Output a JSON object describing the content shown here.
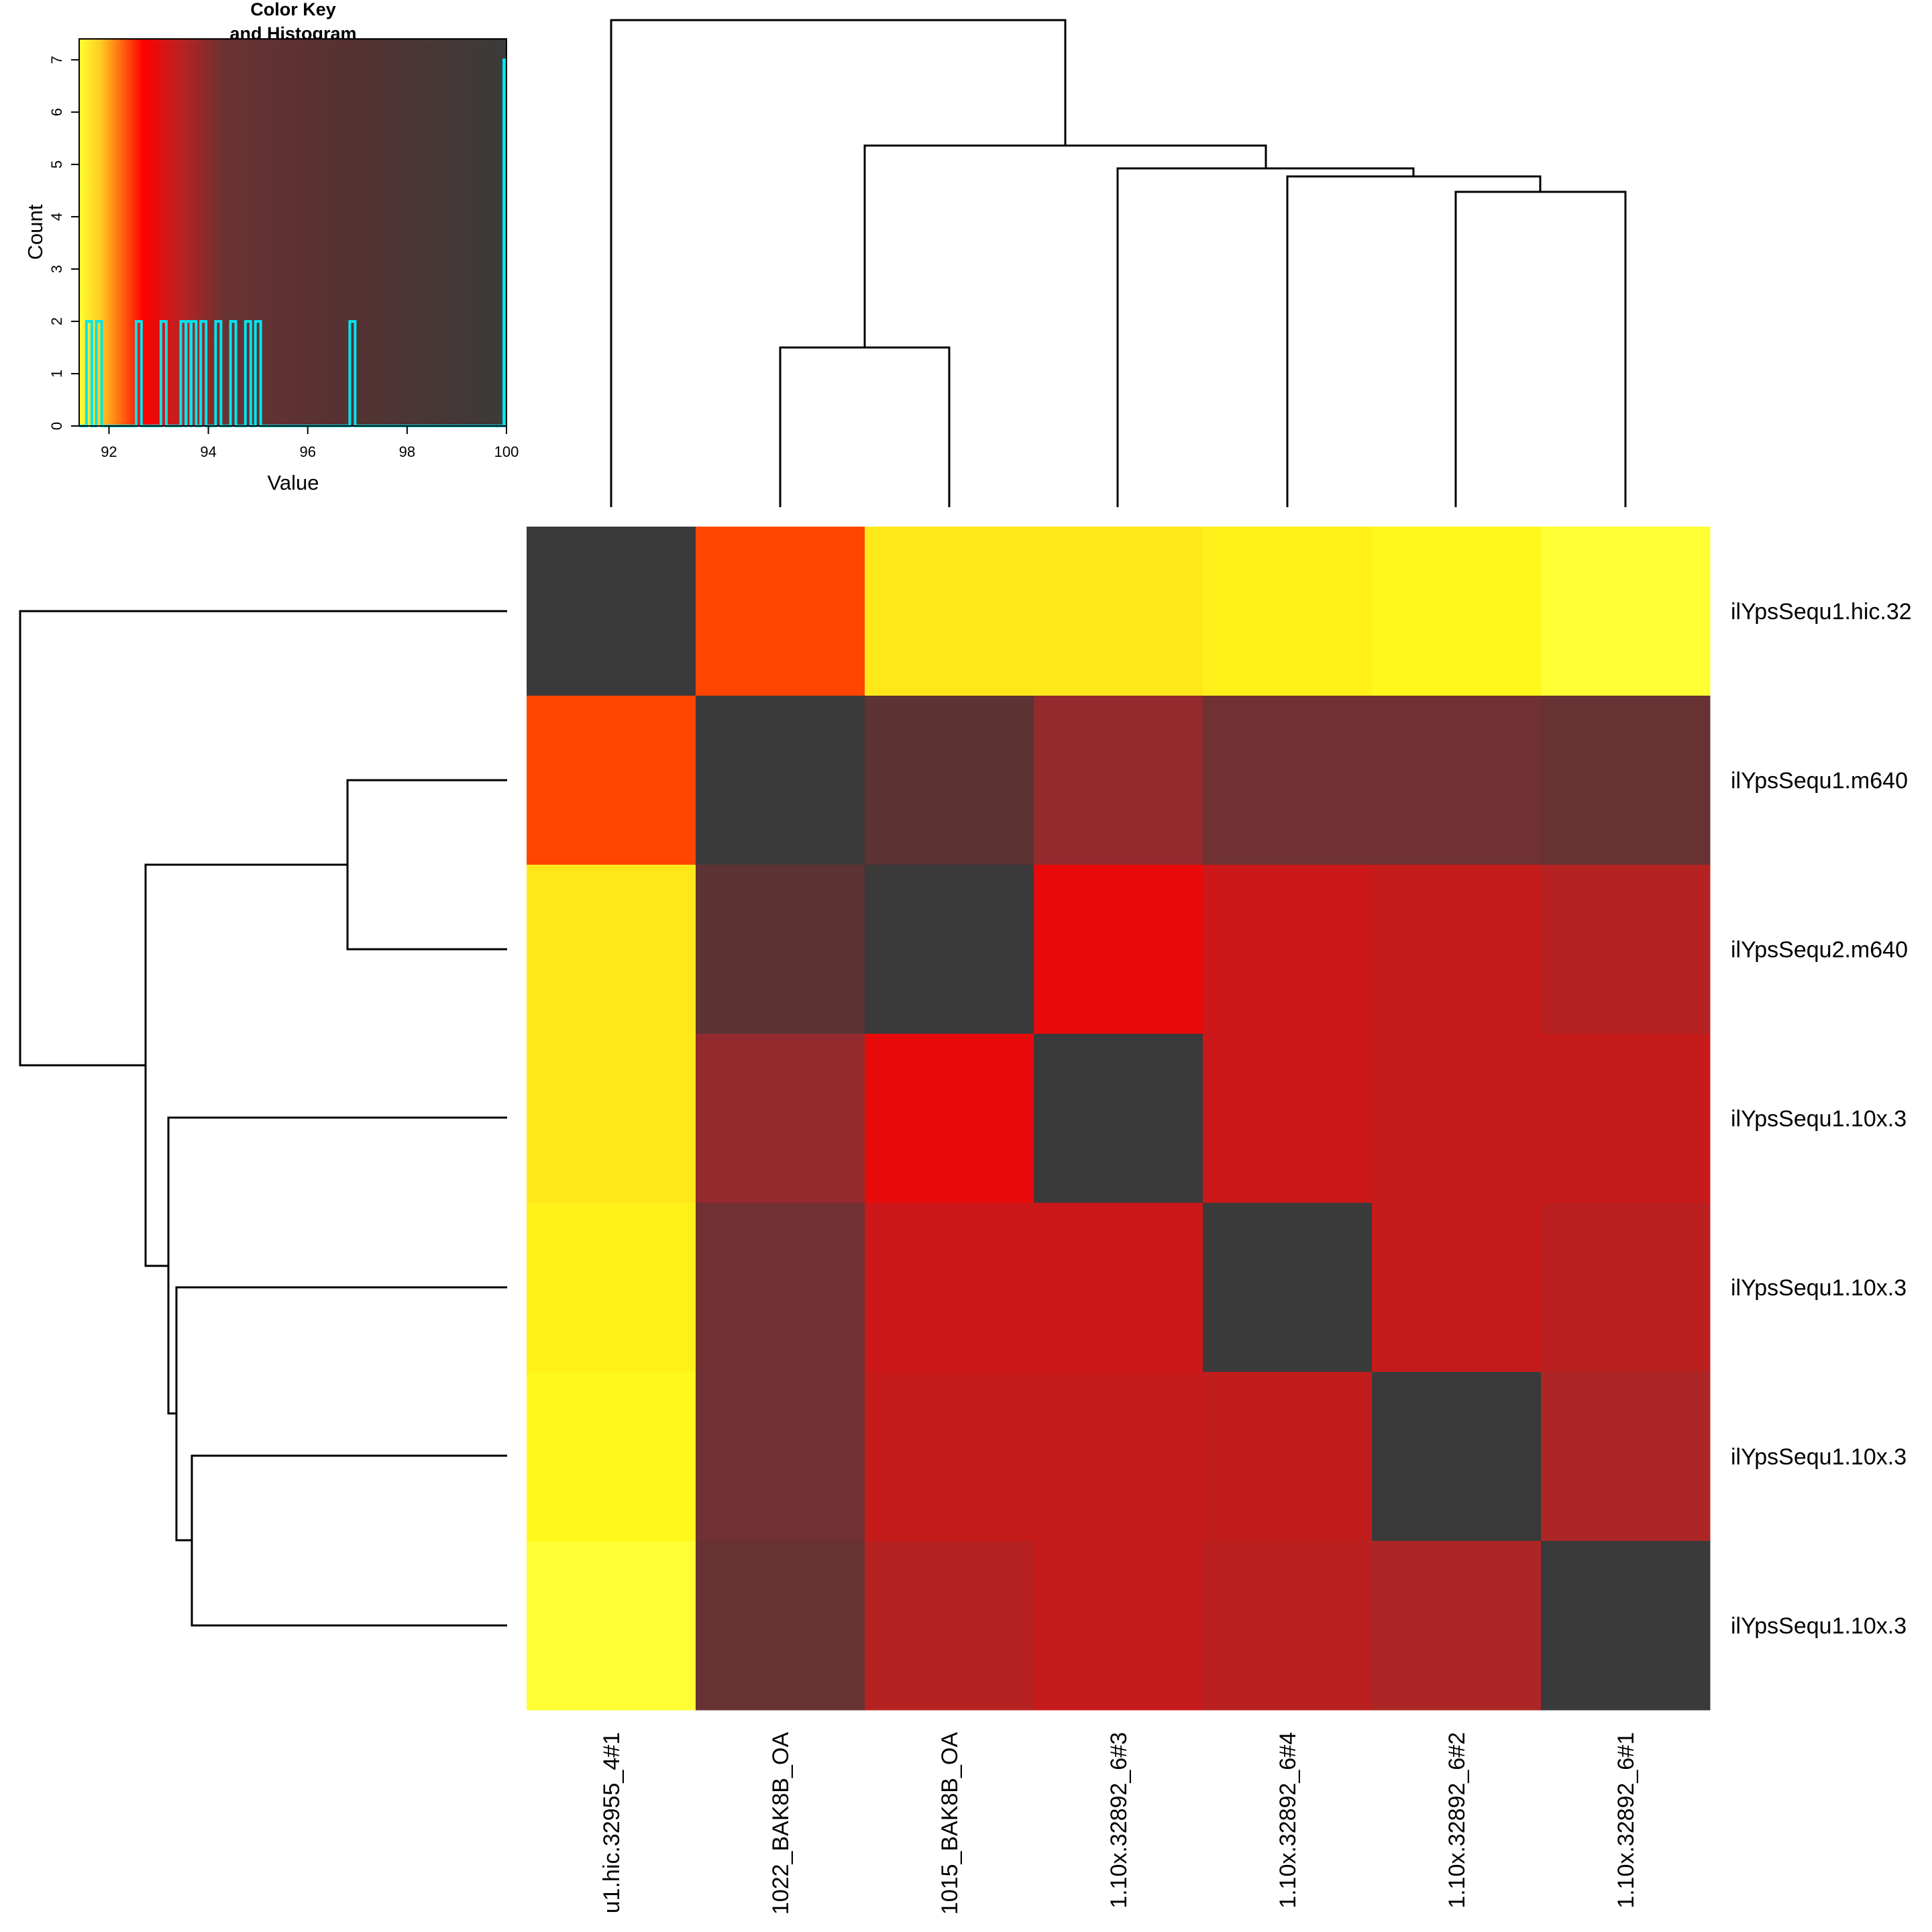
{
  "chart_data": {
    "type": "heatmap",
    "row_labels": [
      "ilYpsSequ1.hic.32",
      "ilYpsSequ1.m640",
      "ilYpsSequ2.m640",
      "ilYpsSequ1.10x.3",
      "ilYpsSequ1.10x.3",
      "ilYpsSequ1.10x.3",
      "ilYpsSequ1.10x.3"
    ],
    "col_labels": [
      "u1.hic.32955_4#1",
      "1022_BAK8B_OA",
      "1015_BAK8B_OA",
      "1.10x.32892_6#3",
      "1.10x.32892_6#4",
      "1.10x.32892_6#2",
      "1.10x.32892_6#1"
    ],
    "values": [
      [
        100,
        92.5,
        91.7,
        91.7,
        91.6,
        91.5,
        91.3
      ],
      [
        92.5,
        100,
        95.7,
        94.5,
        95.0,
        95.0,
        95.3
      ],
      [
        91.7,
        95.7,
        100,
        92.8,
        93.3,
        93.4,
        93.7
      ],
      [
        91.7,
        94.5,
        92.8,
        100,
        93.3,
        93.4,
        93.4
      ],
      [
        91.6,
        95.0,
        93.3,
        93.3,
        100,
        93.4,
        93.6
      ],
      [
        91.5,
        95.0,
        93.4,
        93.4,
        93.5,
        100,
        93.9
      ],
      [
        91.3,
        95.3,
        93.7,
        93.4,
        93.6,
        93.9,
        100
      ]
    ],
    "color_key": {
      "title": "Color Key\nand Histogram",
      "xlabel": "Value",
      "ylabel": "Count",
      "xlim": [
        91.4,
        100
      ],
      "ylim": [
        0,
        7.4
      ],
      "x_ticks": [
        "92",
        "94",
        "96",
        "98",
        "100"
      ],
      "y_ticks": [
        "0",
        "1",
        "2",
        "3",
        "4",
        "5",
        "6",
        "7"
      ],
      "colors": [
        "#ffff33",
        "#ff0000",
        "#b22222",
        "#5c3030",
        "#3c3c3c"
      ],
      "histogram": [
        {
          "value": 91.6,
          "count": 2
        },
        {
          "value": 91.8,
          "count": 2
        },
        {
          "value": 92.6,
          "count": 2
        },
        {
          "value": 93.1,
          "count": 2
        },
        {
          "value": 93.5,
          "count": 2
        },
        {
          "value": 93.6,
          "count": 2
        },
        {
          "value": 93.7,
          "count": 2
        },
        {
          "value": 93.9,
          "count": 2
        },
        {
          "value": 94.2,
          "count": 2
        },
        {
          "value": 94.5,
          "count": 2
        },
        {
          "value": 94.8,
          "count": 2
        },
        {
          "value": 95.0,
          "count": 2
        },
        {
          "value": 96.9,
          "count": 2
        },
        {
          "value": 100,
          "count": 7
        }
      ],
      "histogram_color": "#00e5ee"
    },
    "col_dendrogram_order": [
      1,
      2,
      3,
      4,
      5,
      6,
      7
    ],
    "grid": false
  }
}
